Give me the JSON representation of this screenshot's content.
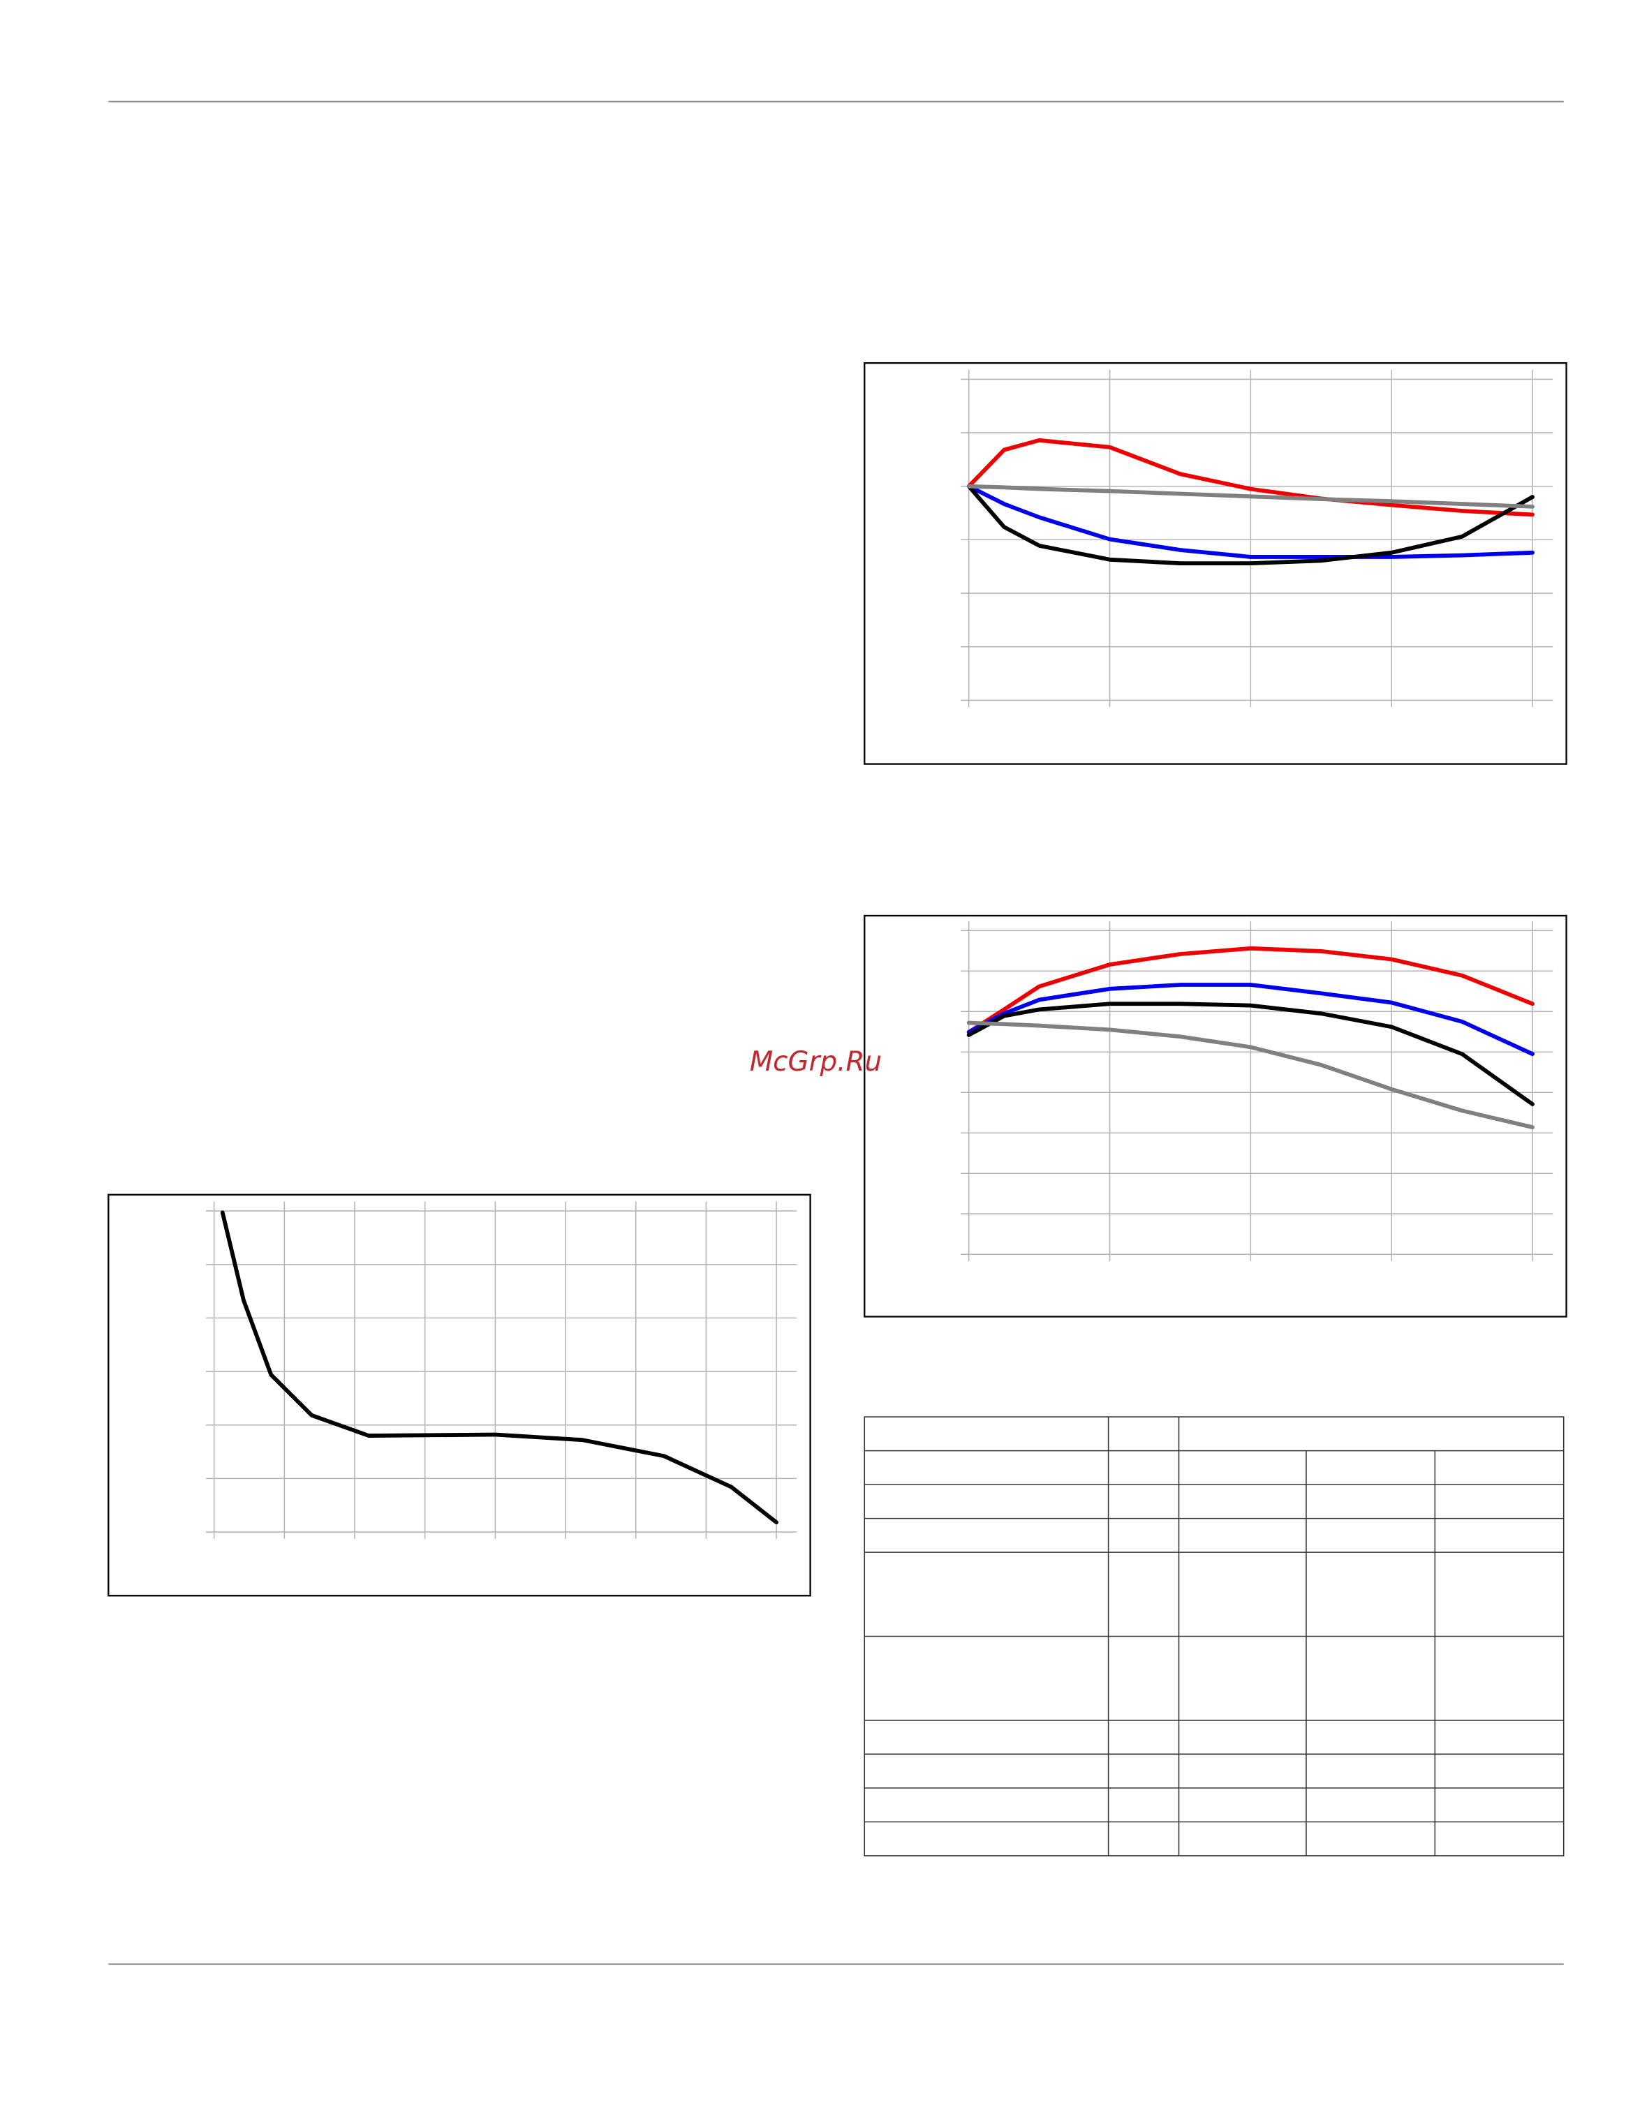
{
  "watermark": "McGrp.Ru",
  "chart_data": [
    {
      "type": "line",
      "x": [
        0,
        0.25,
        0.5,
        1,
        1.5,
        2,
        2.5,
        3,
        3.5,
        4
      ],
      "xlim": [
        0,
        4
      ],
      "xticks": [
        0,
        1,
        2,
        3,
        4
      ],
      "ylim": [
        0,
        6
      ],
      "yticks": [
        0,
        1,
        2,
        3,
        4,
        5,
        6
      ],
      "grid": true,
      "series": [
        {
          "color": "#ee0000",
          "values": [
            4.0,
            4.68,
            4.86,
            4.73,
            4.23,
            3.95,
            3.77,
            3.65,
            3.54,
            3.47
          ]
        },
        {
          "color": "#0000ee",
          "values": [
            4.0,
            3.67,
            3.42,
            3.01,
            2.81,
            2.68,
            2.68,
            2.68,
            2.71,
            2.76
          ]
        },
        {
          "color": "#000000",
          "values": [
            4.0,
            3.24,
            2.89,
            2.63,
            2.56,
            2.56,
            2.61,
            2.76,
            3.06,
            3.8
          ]
        },
        {
          "color": "#808080",
          "values": [
            4.0,
            3.98,
            3.95,
            3.91,
            3.86,
            3.81,
            3.76,
            3.72,
            3.67,
            3.62
          ]
        }
      ]
    },
    {
      "type": "line",
      "x": [
        0,
        0.25,
        0.5,
        1,
        1.5,
        2,
        2.5,
        3,
        3.5,
        4
      ],
      "xlim": [
        0,
        4
      ],
      "xticks": [
        0,
        1,
        2,
        3,
        4
      ],
      "ylim": [
        0,
        8
      ],
      "yticks": [
        0,
        1,
        2,
        3,
        4,
        5,
        6,
        7,
        8
      ],
      "grid": true,
      "series": [
        {
          "color": "#ee0000",
          "values": [
            5.49,
            6.05,
            6.62,
            7.16,
            7.42,
            7.56,
            7.49,
            7.29,
            6.89,
            6.19
          ]
        },
        {
          "color": "#0000ee",
          "values": [
            5.49,
            5.95,
            6.29,
            6.56,
            6.66,
            6.66,
            6.45,
            6.22,
            5.75,
            4.95
          ]
        },
        {
          "color": "#000000",
          "values": [
            5.42,
            5.89,
            6.05,
            6.19,
            6.19,
            6.15,
            5.95,
            5.62,
            4.95,
            3.71
          ]
        },
        {
          "color": "#808080",
          "values": [
            5.72,
            5.69,
            5.65,
            5.55,
            5.38,
            5.12,
            4.68,
            4.08,
            3.55,
            3.14
          ]
        }
      ]
    },
    {
      "type": "line",
      "x": [
        0.12,
        0.42,
        0.81,
        1.39,
        2.2,
        4,
        5.24,
        6.4,
        7.36,
        8
      ],
      "xlim": [
        0,
        8
      ],
      "xticks": [
        0,
        1,
        2,
        3,
        4,
        5,
        6,
        7,
        8
      ],
      "ylim": [
        0,
        6
      ],
      "yticks": [
        0,
        1,
        2,
        3,
        4,
        5,
        6
      ],
      "grid": true,
      "series": [
        {
          "color": "#000000",
          "values": [
            5.97,
            4.33,
            2.94,
            2.18,
            1.8,
            1.82,
            1.72,
            1.42,
            0.84,
            0.18
          ]
        }
      ]
    }
  ]
}
